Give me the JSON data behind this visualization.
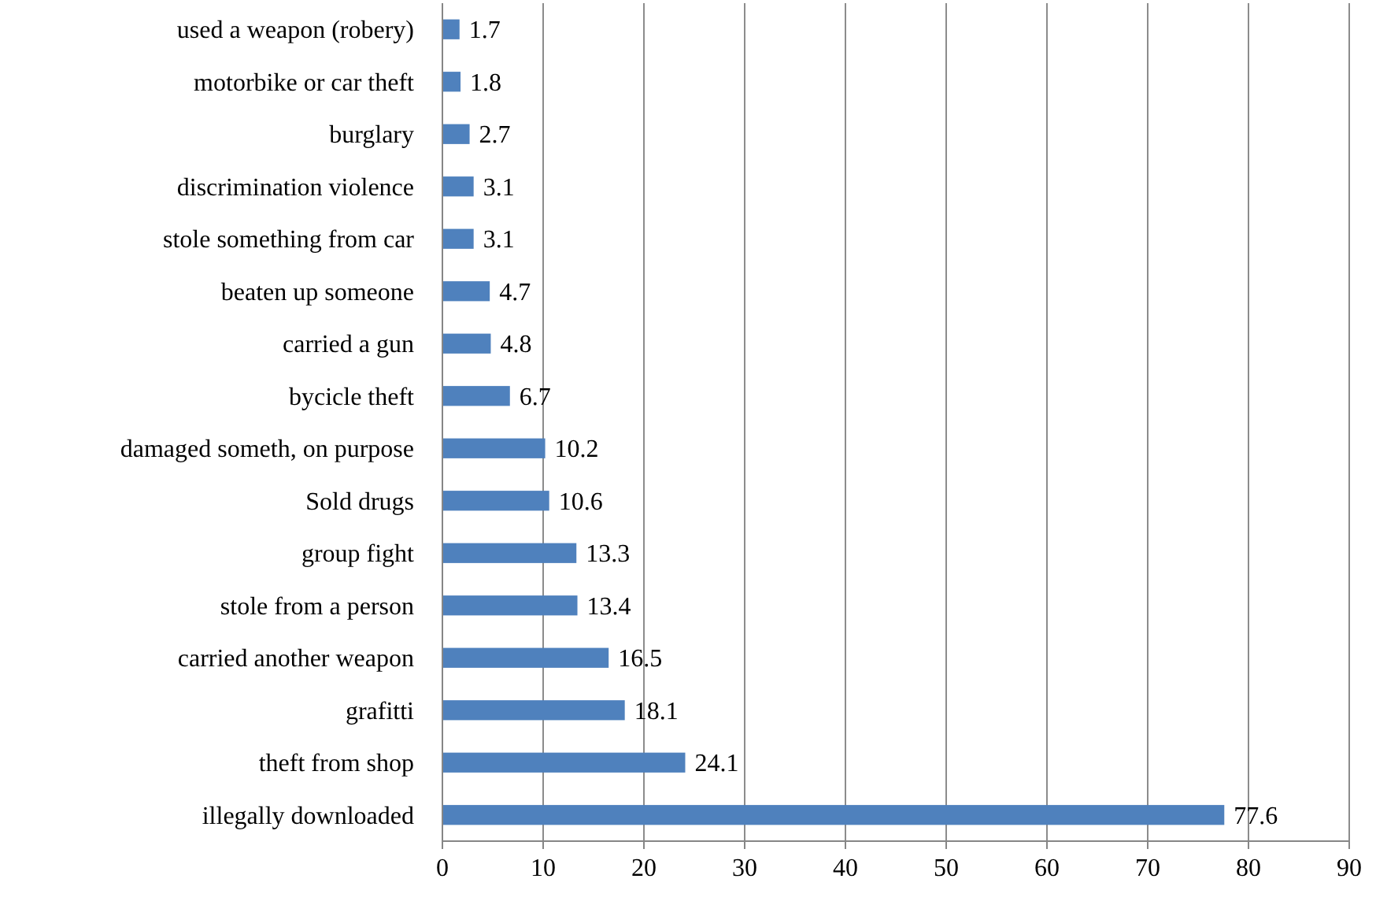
{
  "chart_data": {
    "type": "bar",
    "orientation": "horizontal",
    "categories": [
      "used a weapon (robery)",
      "motorbike or car theft",
      "burglary",
      "discrimination violence",
      "stole something from car",
      "beaten up someone",
      "carried a gun",
      "bycicle theft",
      "damaged someth, on purpose",
      "Sold drugs",
      "group fight",
      "stole from a person",
      "carried another weapon",
      "grafitti",
      "theft from shop",
      "illegally downloaded"
    ],
    "values": [
      1.7,
      1.8,
      2.7,
      3.1,
      3.1,
      4.7,
      4.8,
      6.7,
      10.2,
      10.6,
      13.3,
      13.4,
      16.5,
      18.1,
      24.1,
      77.6
    ],
    "color": "#4f81bd",
    "xlim": [
      0,
      90
    ],
    "xticks": [
      0,
      10,
      20,
      30,
      40,
      50,
      60,
      70,
      80,
      90
    ],
    "grid": "x",
    "data_labels": true
  }
}
